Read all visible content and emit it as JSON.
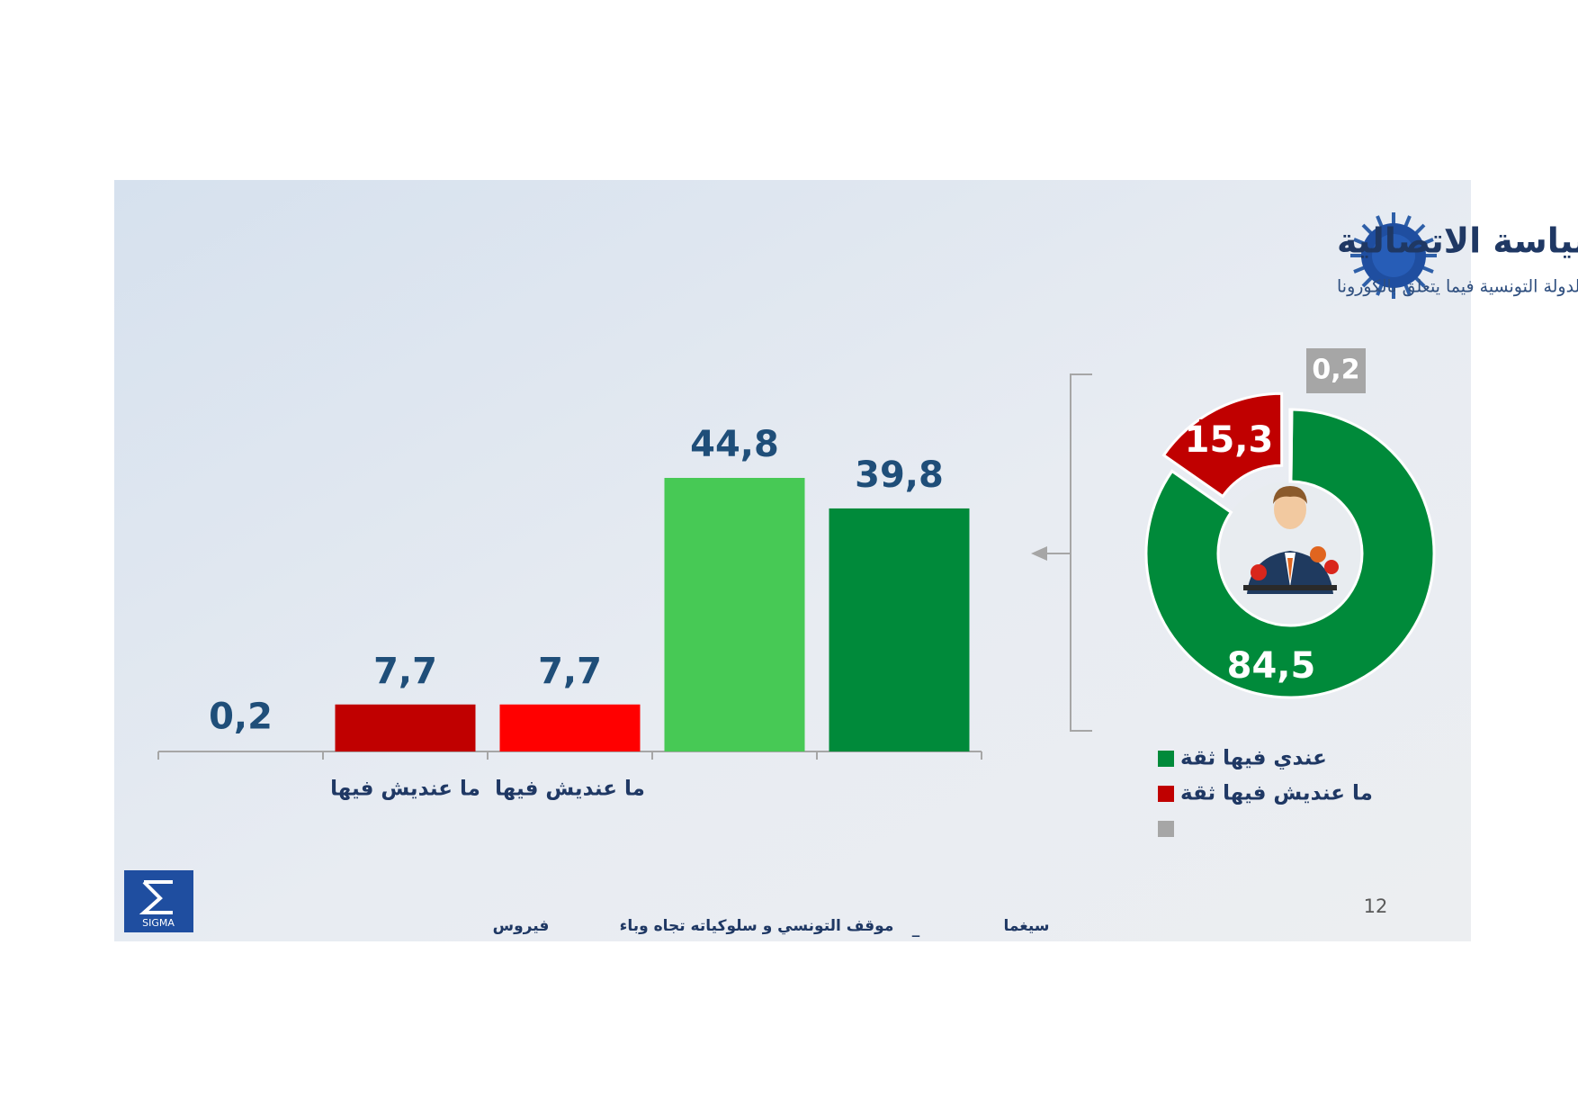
{
  "title": "درجة الثقة في السياسة الاتصالية",
  "subtitle": "إلى أي درجة عندك ثقة في السياسة الاتصالية communicationمتاع الدولة التونسية فيما يتعلق بالكورونا",
  "footer": [
    "سيغما",
    "_",
    "موقف التونسي و سلوكياته تجاه وباء",
    "فيروس"
  ],
  "page_number": 12,
  "logo_text": "SIGMA",
  "chart_data": [
    {
      "type": "bar",
      "categories": [
        null,
        "ما عنديش فيها",
        "ما عنديش فيها",
        null,
        null
      ],
      "values": [
        0.2,
        7.7,
        7.7,
        44.8,
        39.8
      ],
      "value_labels": [
        "0,2",
        "7,7",
        "7,7",
        "44,8",
        "39,8"
      ],
      "colors": [
        "#a6a6a6",
        "#c00000",
        "#ff0000",
        "#47c955",
        "#008a3a"
      ]
    },
    {
      "type": "donut",
      "categories": [
        "عندي فيها ثقة",
        "ما عنديش فيها ثقة",
        null
      ],
      "values": [
        84.5,
        15.3,
        0.2
      ],
      "value_labels": [
        "84,5",
        "15,3",
        "0,2"
      ],
      "colors": [
        "#008a3a",
        "#c00000",
        "#a6a6a6"
      ]
    }
  ]
}
